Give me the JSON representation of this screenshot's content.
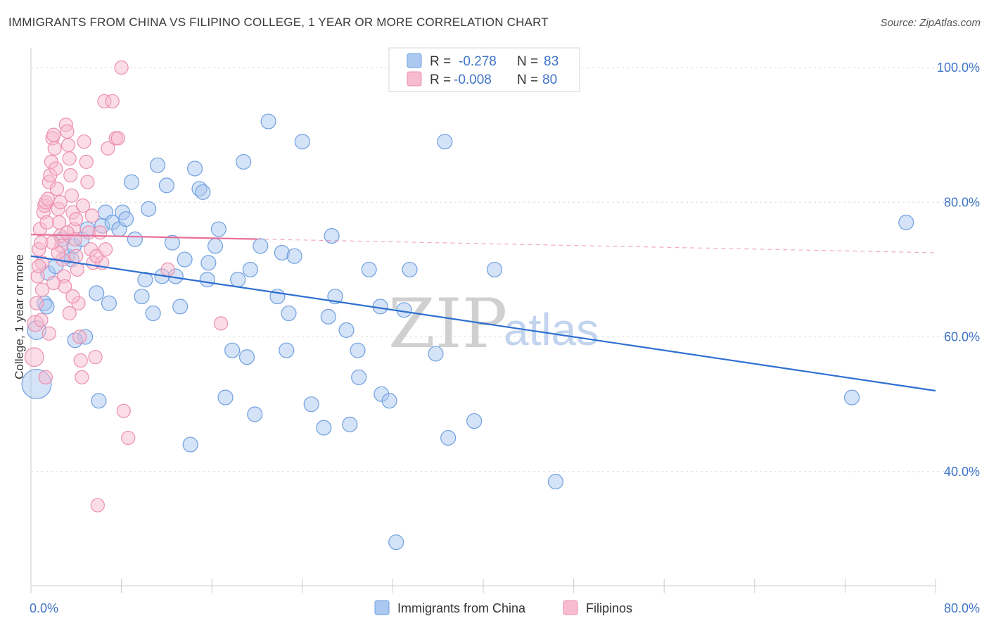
{
  "title": "IMMIGRANTS FROM CHINA VS FILIPINO COLLEGE, 1 YEAR OR MORE CORRELATION CHART",
  "source": "Source: ZipAtlas.com",
  "watermark": {
    "part1": "ZIP",
    "part2": "atlas"
  },
  "legend": {
    "r_label": "R =",
    "n_label": "N =",
    "series1": {
      "r": "-0.278",
      "n": "83"
    },
    "series2": {
      "r": "-0.008",
      "n": "80"
    }
  },
  "colors": {
    "china_fill": "#aac8f0",
    "china_stroke": "#6f9fe0",
    "china_line": "#2f6fd0",
    "filipino_fill": "#f7bcd0",
    "filipino_stroke": "#ec8fb0",
    "filipino_line": "#e8709a",
    "tick_text": "#3f74c7",
    "grid": "#dddddd"
  },
  "chart_data": {
    "type": "scatter",
    "xlabel": "",
    "ylabel": "College, 1 year or more",
    "xlim": [
      0,
      80
    ],
    "ylim": [
      20,
      100
    ],
    "x_ticks": [
      {
        "v": 0,
        "label": "0.0%"
      },
      {
        "v": 80,
        "label": "80.0%"
      }
    ],
    "y_ticks": [
      {
        "v": 40,
        "label": "40.0%"
      },
      {
        "v": 60,
        "label": "60.0%"
      },
      {
        "v": 80,
        "label": "80.0%"
      },
      {
        "v": 100,
        "label": "100.0%"
      }
    ],
    "grid": true,
    "legend_position": "top-center",
    "series": [
      {
        "name": "Immigrants from China",
        "trend": {
          "x0": 0,
          "y0": 72.0,
          "x1": 80,
          "y1": 52.0
        },
        "points": [
          [
            0.5,
            53,
            22
          ],
          [
            0.5,
            61,
            14
          ],
          [
            1.2,
            65,
            11
          ],
          [
            1.5,
            69.5,
            11
          ],
          [
            2.2,
            70.5,
            11
          ],
          [
            2.8,
            74.5,
            11
          ],
          [
            3.2,
            72,
            11
          ],
          [
            3.6,
            71.5,
            11
          ],
          [
            3.8,
            73.5,
            11
          ],
          [
            4.5,
            74.5,
            11
          ],
          [
            5.0,
            76,
            11
          ],
          [
            4.8,
            60,
            11
          ],
          [
            5.8,
            66.5,
            11
          ],
          [
            6.3,
            76.5,
            11
          ],
          [
            6.6,
            78.5,
            11
          ],
          [
            6.9,
            65,
            11
          ],
          [
            7.2,
            77,
            11
          ],
          [
            7.8,
            76,
            11
          ],
          [
            8.1,
            78.5,
            11
          ],
          [
            8.4,
            77.5,
            11
          ],
          [
            8.9,
            83,
            11
          ],
          [
            9.2,
            74.5,
            11
          ],
          [
            9.8,
            66,
            11
          ],
          [
            10.1,
            68.5,
            11
          ],
          [
            10.4,
            79,
            11
          ],
          [
            10.8,
            63.5,
            11
          ],
          [
            11.2,
            85.5,
            11
          ],
          [
            11.6,
            69,
            11
          ],
          [
            12.0,
            82.5,
            11
          ],
          [
            12.5,
            74,
            11
          ],
          [
            12.8,
            69,
            11
          ],
          [
            13.2,
            64.5,
            11
          ],
          [
            13.6,
            71.5,
            11
          ],
          [
            14.1,
            44,
            11
          ],
          [
            14.5,
            85,
            11
          ],
          [
            14.9,
            82,
            11
          ],
          [
            15.2,
            81.5,
            11
          ],
          [
            15.6,
            68.5,
            11
          ],
          [
            15.7,
            71,
            11
          ],
          [
            16.3,
            73.5,
            11
          ],
          [
            16.6,
            76,
            11
          ],
          [
            17.2,
            51,
            11
          ],
          [
            17.8,
            58,
            11
          ],
          [
            18.3,
            68.5,
            11
          ],
          [
            18.8,
            86,
            11
          ],
          [
            19.1,
            57,
            11
          ],
          [
            19.4,
            70,
            11
          ],
          [
            19.8,
            48.5,
            11
          ],
          [
            20.3,
            73.5,
            11
          ],
          [
            21.0,
            92,
            11
          ],
          [
            21.8,
            66,
            11
          ],
          [
            22.2,
            72.5,
            11
          ],
          [
            22.6,
            58,
            11
          ],
          [
            22.8,
            63.5,
            11
          ],
          [
            23.3,
            72,
            11
          ],
          [
            24.0,
            89,
            11
          ],
          [
            24.8,
            50,
            11
          ],
          [
            25.9,
            46.5,
            11
          ],
          [
            26.3,
            63,
            11
          ],
          [
            26.9,
            66,
            11
          ],
          [
            26.6,
            75,
            11
          ],
          [
            27.9,
            61,
            11
          ],
          [
            28.2,
            47,
            11
          ],
          [
            28.9,
            58,
            11
          ],
          [
            29.0,
            54,
            11
          ],
          [
            29.9,
            70,
            11
          ],
          [
            30.9,
            64.5,
            11
          ],
          [
            31.0,
            51.5,
            11
          ],
          [
            31.7,
            50.5,
            11
          ],
          [
            32.3,
            29.5,
            11
          ],
          [
            33.0,
            64,
            11
          ],
          [
            33.5,
            70,
            11
          ],
          [
            35.8,
            57.5,
            11
          ],
          [
            36.6,
            89,
            11
          ],
          [
            36.9,
            45,
            11
          ],
          [
            39.2,
            47.5,
            11
          ],
          [
            41.0,
            70,
            11
          ],
          [
            46.4,
            38.5,
            11
          ],
          [
            72.6,
            51,
            11
          ],
          [
            77.4,
            77,
            11
          ],
          [
            1.4,
            64.5,
            11
          ],
          [
            6.0,
            50.5,
            11
          ],
          [
            3.9,
            59.5,
            11
          ]
        ]
      },
      {
        "name": "Filipinos",
        "trend": {
          "x0": 0,
          "y0": 75.2,
          "x1": 80,
          "y1": 72.5
        },
        "trend_solid_until_x": 20,
        "points": [
          [
            0.3,
            57,
            14
          ],
          [
            0.4,
            62,
            12
          ],
          [
            0.5,
            65,
            10
          ],
          [
            0.6,
            69,
            10
          ],
          [
            0.7,
            73,
            10
          ],
          [
            0.8,
            76,
            10
          ],
          [
            0.9,
            74,
            10
          ],
          [
            1.0,
            71,
            10
          ],
          [
            1.1,
            78.5,
            10
          ],
          [
            1.2,
            79.5,
            10
          ],
          [
            1.3,
            80,
            10
          ],
          [
            1.4,
            77,
            10
          ],
          [
            1.5,
            80.5,
            10
          ],
          [
            1.6,
            83,
            10
          ],
          [
            1.7,
            84,
            10
          ],
          [
            1.8,
            86,
            10
          ],
          [
            1.9,
            89.5,
            10
          ],
          [
            2.0,
            90,
            10
          ],
          [
            2.1,
            88,
            10
          ],
          [
            2.2,
            85,
            10
          ],
          [
            2.3,
            82,
            10
          ],
          [
            2.4,
            79,
            10
          ],
          [
            2.5,
            77,
            10
          ],
          [
            2.6,
            75,
            10
          ],
          [
            2.7,
            73.5,
            10
          ],
          [
            2.8,
            71.5,
            10
          ],
          [
            2.9,
            69,
            10
          ],
          [
            3.0,
            67.5,
            10
          ],
          [
            3.1,
            91.5,
            10
          ],
          [
            3.2,
            90.5,
            10
          ],
          [
            3.3,
            88.5,
            10
          ],
          [
            3.4,
            86.5,
            10
          ],
          [
            3.5,
            84,
            10
          ],
          [
            3.6,
            81,
            10
          ],
          [
            3.7,
            78.5,
            10
          ],
          [
            3.8,
            76,
            10
          ],
          [
            3.9,
            74.5,
            10
          ],
          [
            4.0,
            72,
            10
          ],
          [
            4.1,
            70,
            10
          ],
          [
            4.2,
            65,
            10
          ],
          [
            4.3,
            60,
            10
          ],
          [
            4.4,
            56.5,
            10
          ],
          [
            4.5,
            54,
            10
          ],
          [
            4.7,
            89,
            10
          ],
          [
            4.9,
            86,
            10
          ],
          [
            5.1,
            75.5,
            10
          ],
          [
            5.3,
            73,
            10
          ],
          [
            5.5,
            71,
            10
          ],
          [
            5.7,
            57,
            10
          ],
          [
            5.9,
            35,
            10
          ],
          [
            6.1,
            75.5,
            10
          ],
          [
            6.3,
            71,
            10
          ],
          [
            6.5,
            95,
            10
          ],
          [
            6.8,
            88,
            10
          ],
          [
            7.2,
            95,
            10
          ],
          [
            7.5,
            89.5,
            10
          ],
          [
            7.7,
            89.5,
            10
          ],
          [
            8.0,
            100,
            10
          ],
          [
            8.2,
            49,
            10
          ],
          [
            8.6,
            45,
            10
          ],
          [
            12.1,
            70,
            10
          ],
          [
            16.8,
            62,
            10
          ],
          [
            0.9,
            62.5,
            10
          ],
          [
            1.3,
            54,
            10
          ],
          [
            1.6,
            60.5,
            10
          ],
          [
            2.0,
            68,
            10
          ],
          [
            2.4,
            72.5,
            10
          ],
          [
            3.2,
            75.5,
            10
          ],
          [
            3.7,
            66,
            10
          ],
          [
            4.6,
            79.5,
            10
          ],
          [
            5.0,
            83,
            10
          ],
          [
            5.4,
            78,
            10
          ],
          [
            5.8,
            72,
            10
          ],
          [
            6.6,
            73,
            10
          ],
          [
            0.7,
            70.5,
            10
          ],
          [
            1.0,
            67,
            10
          ],
          [
            1.9,
            74,
            10
          ],
          [
            2.6,
            80,
            10
          ],
          [
            3.4,
            63.5,
            10
          ],
          [
            4.0,
            77.5,
            10
          ]
        ]
      }
    ]
  },
  "bottom_legend": {
    "china": "Immigrants from China",
    "filipino": "Filipinos"
  }
}
